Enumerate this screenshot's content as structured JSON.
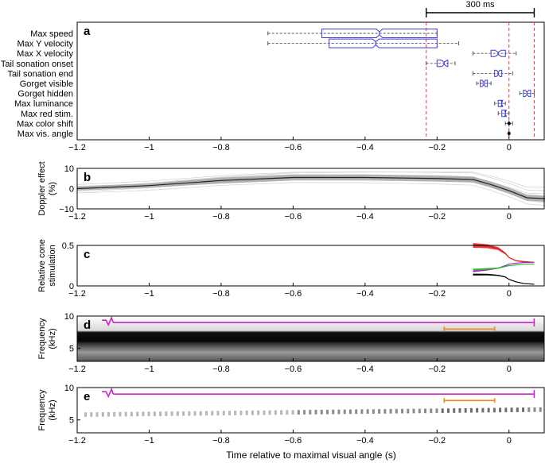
{
  "chart_data": [
    {
      "panel": "a",
      "type": "boxplot",
      "scale_bar_label": "300 ms",
      "categories": [
        "Max speed",
        "Max Y velocity",
        "Max X velocity",
        "Tail sonation onset",
        "Tail sonation end",
        "Gorget visible",
        "Gorget hidden",
        "Max luminance",
        "Max red stim.",
        "Max color shift",
        "Max vis. angle"
      ],
      "boxes": [
        {
          "whisker_low": -0.67,
          "q1": -0.52,
          "median": -0.36,
          "q3": -0.2,
          "whisker_high": -0.2
        },
        {
          "whisker_low": -0.67,
          "q1": -0.5,
          "median": -0.37,
          "q3": -0.2,
          "whisker_high": -0.14
        },
        {
          "whisker_low": -0.1,
          "q1": -0.05,
          "median": -0.03,
          "q3": -0.01,
          "whisker_high": 0.02
        },
        {
          "whisker_low": -0.23,
          "q1": -0.2,
          "median": -0.18,
          "q3": -0.17,
          "whisker_high": -0.15
        },
        {
          "whisker_low": -0.1,
          "q1": -0.04,
          "median": -0.03,
          "q3": -0.02,
          "whisker_high": 0.01
        },
        {
          "whisker_low": -0.09,
          "q1": -0.08,
          "median": -0.07,
          "q3": -0.06,
          "whisker_high": -0.05
        },
        {
          "whisker_low": 0.03,
          "q1": 0.04,
          "median": 0.05,
          "q3": 0.06,
          "whisker_high": 0.07
        },
        {
          "whisker_low": -0.04,
          "q1": -0.03,
          "median": -0.02,
          "q3": -0.02,
          "whisker_high": -0.01
        },
        {
          "whisker_low": -0.03,
          "q1": -0.02,
          "median": -0.01,
          "q3": -0.01,
          "whisker_high": 0.0
        },
        {
          "whisker_low": -0.01,
          "q1": 0.0,
          "median": 0.0,
          "q3": 0.0,
          "whisker_high": 0.01
        },
        {
          "whisker_low": 0.0,
          "q1": 0.0,
          "median": 0.0,
          "q3": 0.0,
          "whisker_high": 0.0
        }
      ],
      "reference_lines_x": [
        -0.23,
        0.0,
        0.07
      ],
      "xlim": [
        -1.2,
        0.1
      ],
      "xticks": [
        "−1.2",
        "−1",
        "−0.8",
        "−0.6",
        "−0.4",
        "−0.2",
        "0"
      ],
      "colors": {
        "box": "#3b3bd6",
        "reference": "#e8333a",
        "whisker": "#555555"
      }
    },
    {
      "panel": "b",
      "type": "line",
      "ylabel": "Doppler effect (%)",
      "ylim": [
        -10,
        10
      ],
      "yticks": [
        "10",
        "0",
        "−10"
      ],
      "xticks": [
        "−1.2",
        "−1",
        "−0.8",
        "−0.6",
        "−0.4",
        "−0.2",
        "0"
      ],
      "x": [
        -1.2,
        -1.0,
        -0.8,
        -0.6,
        -0.4,
        -0.2,
        -0.1,
        -0.05,
        0.0,
        0.05,
        0.1
      ],
      "mean": [
        0.0,
        1.5,
        4.0,
        5.5,
        5.5,
        5.0,
        4.5,
        2.0,
        -1.0,
        -4.5,
        -5.0
      ],
      "upper": [
        1.0,
        2.5,
        5.5,
        7.0,
        7.0,
        6.5,
        6.0,
        3.5,
        0.5,
        -3.0,
        -3.5
      ],
      "lower": [
        -1.0,
        0.5,
        2.5,
        4.0,
        4.0,
        3.5,
        3.0,
        0.5,
        -2.5,
        -6.0,
        -6.5
      ],
      "colors": {
        "band": "#9a9a9a",
        "mean": "#222222"
      }
    },
    {
      "panel": "c",
      "type": "line",
      "ylabel": "Relative cone stimulation",
      "ylim": [
        0,
        0.5
      ],
      "yticks": [
        "0.5",
        "0"
      ],
      "xticks": [
        "−1.2",
        "−1",
        "−0.8",
        "−0.6",
        "−0.4",
        "−0.2",
        "0"
      ],
      "x": [
        -0.1,
        -0.06,
        -0.03,
        -0.01,
        0.0,
        0.02,
        0.04,
        0.07
      ],
      "series": [
        {
          "values": [
            0.5,
            0.49,
            0.46,
            0.4,
            0.35,
            0.31,
            0.3,
            0.29
          ],
          "color": "#e01c1c"
        },
        {
          "values": [
            0.18,
            0.2,
            0.22,
            0.25,
            0.27,
            0.28,
            0.29,
            0.29
          ],
          "color": "#b81fd0"
        },
        {
          "values": [
            0.2,
            0.21,
            0.22,
            0.24,
            0.25,
            0.26,
            0.27,
            0.27
          ],
          "color": "#1cbf1c"
        },
        {
          "values": [
            0.14,
            0.14,
            0.13,
            0.11,
            0.08,
            0.05,
            0.03,
            0.02
          ],
          "color": "#000000"
        }
      ]
    },
    {
      "panel": "d",
      "type": "heatmap",
      "ylabel": "Frequency (kHz)",
      "ylim": [
        3,
        10
      ],
      "yticks": [
        "10",
        "5"
      ],
      "xticks": [
        "−1.2",
        "−1",
        "−0.8",
        "−0.6",
        "−0.4",
        "−0.2",
        "0"
      ],
      "band_khz": [
        6,
        7.5
      ],
      "magenta_bracket": [
        -1.1,
        0.07
      ],
      "orange_bracket": [
        -0.18,
        -0.04
      ],
      "colors": {
        "magenta": "#cc22cc",
        "orange": "#f08a1c"
      }
    },
    {
      "panel": "e",
      "type": "heatmap",
      "ylabel": "Frequency (kHz)",
      "ylim": [
        3,
        10
      ],
      "yticks": [
        "10",
        "5"
      ],
      "xticks": [
        "−1.2",
        "−1",
        "−0.8",
        "−0.6",
        "−0.4",
        "−0.2",
        "0"
      ],
      "xlabel": "Time relative to maximal visual angle (s)",
      "trace_khz": [
        5.8,
        6.6
      ],
      "magenta_bracket": [
        -1.1,
        0.07
      ],
      "orange_bracket": [
        -0.18,
        -0.04
      ],
      "colors": {
        "magenta": "#cc22cc",
        "orange": "#f08a1c"
      }
    }
  ]
}
